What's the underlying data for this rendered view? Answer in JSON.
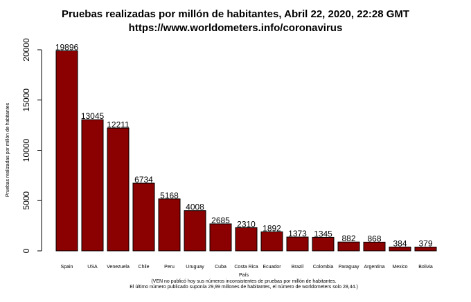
{
  "chart_data": {
    "type": "bar",
    "title": "Pruebas realizadas por millón de habitantes, Abril 22, 2020, 22:28 GMT",
    "subtitle": "https://www.worldometers.info/coronavirus",
    "xlabel": "País",
    "ylabel": "Pruebas realizadas por millón de habitantes",
    "categories": [
      "Spain",
      "USA",
      "Venezuela",
      "Chile",
      "Peru",
      "Uruguay",
      "Cuba",
      "Costa Rica",
      "Ecuador",
      "Brazil",
      "Colombia",
      "Paraguay",
      "Argentina",
      "Mexico",
      "Bolivia"
    ],
    "values": [
      19896,
      13045,
      12211,
      6734,
      5168,
      4008,
      2685,
      2310,
      1892,
      1373,
      1345,
      882,
      868,
      384,
      379
    ],
    "value_labels": [
      "19896",
      "13045",
      "12211",
      "6734",
      "5168",
      "4008",
      "2685",
      "2310",
      "1892",
      "1373",
      "1345",
      "882",
      "868",
      "384",
      "379"
    ],
    "ylim": [
      0,
      20000
    ],
    "yticks": [
      0,
      5000,
      10000,
      15000,
      20000
    ],
    "ytick_labels": [
      "0",
      "5000",
      "10000",
      "15000",
      "20000"
    ],
    "grid": false,
    "bar_color": "#8b0000",
    "notes": [
      "(VEN no publicó hoy sus números inconsistentes de pruebas por millón de habitantes.",
      "El último número publicado suponía 29,99 millones de habitantes, el número de worldometers solo 28,44.)"
    ]
  }
}
